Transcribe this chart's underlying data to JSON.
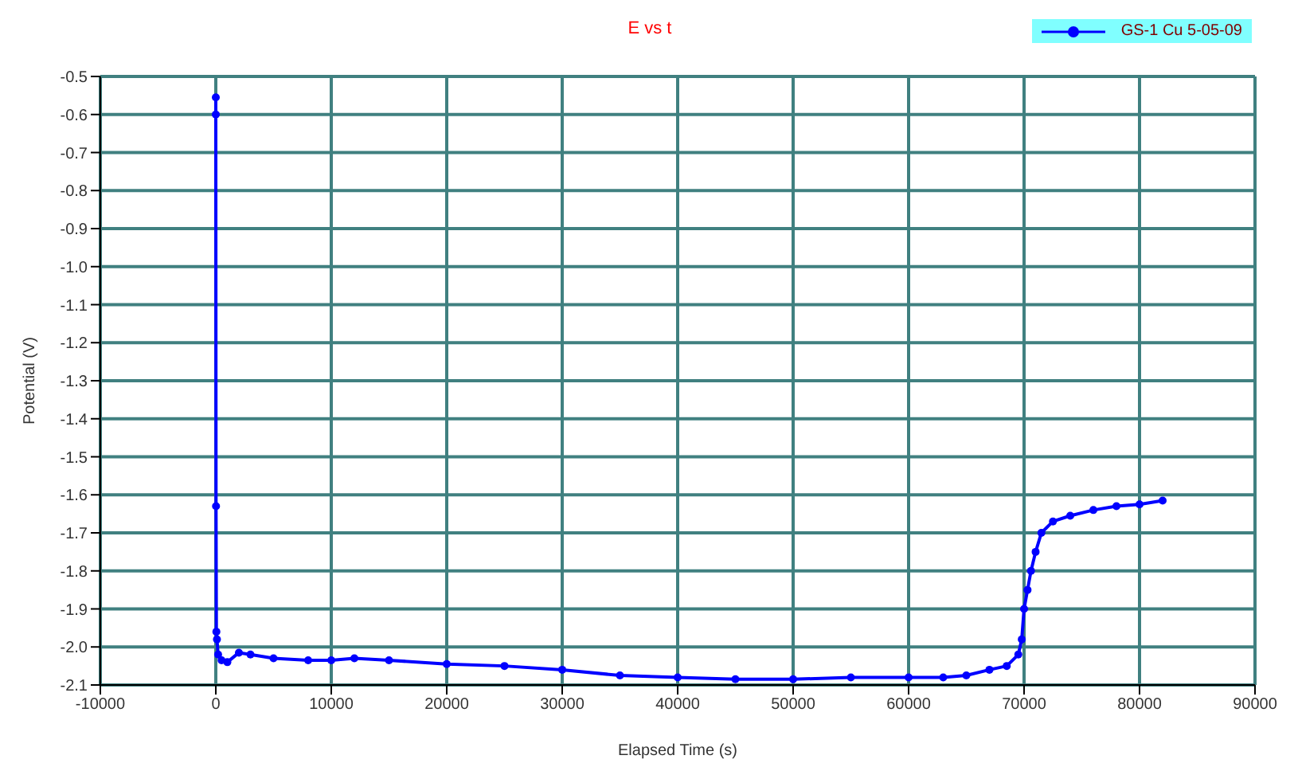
{
  "chart_data": {
    "type": "line",
    "title": "E vs t",
    "xlabel": "Elapsed Time (s)",
    "ylabel": "Potential (V)",
    "xlim": [
      -10000,
      90000
    ],
    "xticks": [
      -10000,
      0,
      10000,
      20000,
      30000,
      40000,
      50000,
      60000,
      70000,
      80000,
      90000
    ],
    "ylim": [
      -2.1,
      -0.5
    ],
    "yticks": [
      {
        "value": -2.1,
        "label": "-2.1"
      },
      {
        "value": -2.0,
        "label": "-2.0"
      },
      {
        "value": -1.9,
        "label": "-1.9"
      },
      {
        "value": -1.8,
        "label": "-1.8"
      },
      {
        "value": -1.7,
        "label": "-1.7"
      },
      {
        "value": -1.6,
        "label": "-1.6"
      },
      {
        "value": -1.5,
        "label": "-1.5"
      },
      {
        "value": -1.4,
        "label": "-1.4"
      },
      {
        "value": -1.3,
        "label": "-1.3"
      },
      {
        "value": -1.2,
        "label": "-1.2"
      },
      {
        "value": -1.1,
        "label": "-1.1"
      },
      {
        "value": -1.0,
        "label": "-1.0"
      },
      {
        "value": -0.9,
        "label": "-0.9"
      },
      {
        "value": -0.8,
        "label": "-0.8"
      },
      {
        "value": -0.7,
        "label": "-0.7"
      },
      {
        "value": -0.6,
        "label": "-0.6"
      },
      {
        "value": -0.5,
        "label": "-0.5"
      }
    ],
    "grid": true,
    "legend": "top right",
    "marker": "circle",
    "line_style": "solid",
    "series": [
      {
        "name": "GS-1 Cu 5-05-09",
        "color": "#0000ff",
        "x": [
          0,
          0,
          20,
          50,
          100,
          200,
          500,
          1000,
          2000,
          3000,
          5000,
          8000,
          10000,
          12000,
          15000,
          20000,
          25000,
          30000,
          35000,
          40000,
          45000,
          50000,
          55000,
          60000,
          63000,
          65000,
          67000,
          68500,
          69500,
          69800,
          70000,
          70300,
          70600,
          71000,
          71500,
          72500,
          74000,
          76000,
          78000,
          80000,
          82000
        ],
        "values": [
          -0.555,
          -0.6,
          -1.63,
          -1.96,
          -1.98,
          -2.02,
          -2.035,
          -2.04,
          -2.015,
          -2.02,
          -2.03,
          -2.035,
          -2.035,
          -2.03,
          -2.035,
          -2.045,
          -2.05,
          -2.06,
          -2.075,
          -2.08,
          -2.085,
          -2.085,
          -2.08,
          -2.08,
          -2.08,
          -2.075,
          -2.06,
          -2.05,
          -2.02,
          -1.98,
          -1.9,
          -1.85,
          -1.8,
          -1.75,
          -1.7,
          -1.67,
          -1.655,
          -1.64,
          -1.63,
          -1.625,
          -1.615
        ]
      }
    ]
  }
}
